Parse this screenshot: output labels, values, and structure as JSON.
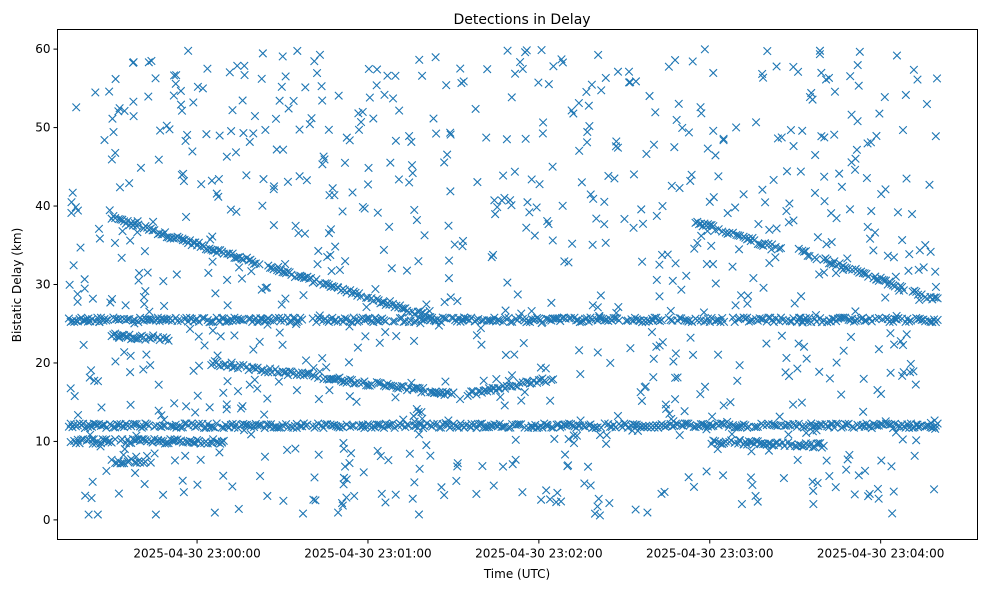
{
  "chart_data": {
    "type": "scatter",
    "title": "Detections in Delay",
    "xlabel": "Time (UTC)",
    "ylabel": "Bistatic Delay (km)",
    "x_ticks": [
      "2025-04-30 23:00:00",
      "2025-04-30 23:01:00",
      "2025-04-30 23:02:00",
      "2025-04-30 23:03:00",
      "2025-04-30 23:04:00"
    ],
    "y_ticks": [
      0,
      10,
      20,
      30,
      40,
      50,
      60
    ],
    "xlim": [
      "2025-04-30 22:59:11",
      "2025-04-30 23:04:34"
    ],
    "ylim": [
      -2.5,
      62.5
    ],
    "marker": "x",
    "color": "#1f77b4",
    "grid": false,
    "tracks": [
      {
        "x": [
          "2025-04-30 22:59:30",
          "2025-04-30 23:01:25"
        ],
        "y": [
          38.5,
          25.5
        ]
      },
      {
        "x": [
          "2025-04-30 23:00:05",
          "2025-04-30 23:01:30"
        ],
        "y": [
          20.0,
          16.0
        ]
      },
      {
        "x": [
          "2025-04-30 23:01:35",
          "2025-04-30 23:02:05"
        ],
        "y": [
          16.0,
          18.0
        ]
      },
      {
        "x": [
          "2025-04-30 23:02:55",
          "2025-04-30 23:03:25"
        ],
        "y": [
          38.0,
          34.5
        ]
      },
      {
        "x": [
          "2025-04-30 23:03:30",
          "2025-04-30 23:04:20"
        ],
        "y": [
          34.5,
          28.0
        ]
      },
      {
        "x": [
          "2025-04-30 22:59:15",
          "2025-04-30 23:04:20"
        ],
        "y": [
          25.5,
          25.5
        ]
      },
      {
        "x": [
          "2025-04-30 22:59:15",
          "2025-04-30 23:04:20"
        ],
        "y": [
          12.0,
          12.0
        ]
      },
      {
        "x": [
          "2025-04-30 22:59:15",
          "2025-04-30 23:00:10"
        ],
        "y": [
          10.0,
          10.0
        ]
      },
      {
        "x": [
          "2025-04-30 23:03:00",
          "2025-04-30 23:03:40"
        ],
        "y": [
          10.0,
          9.5
        ]
      },
      {
        "x": [
          "2025-04-30 22:59:30",
          "2025-04-30 22:59:50"
        ],
        "y": [
          23.5,
          23.0
        ]
      },
      {
        "x": [
          "2025-04-30 22:59:30",
          "2025-04-30 22:59:45"
        ],
        "y": [
          7.5,
          7.5
        ]
      }
    ]
  }
}
